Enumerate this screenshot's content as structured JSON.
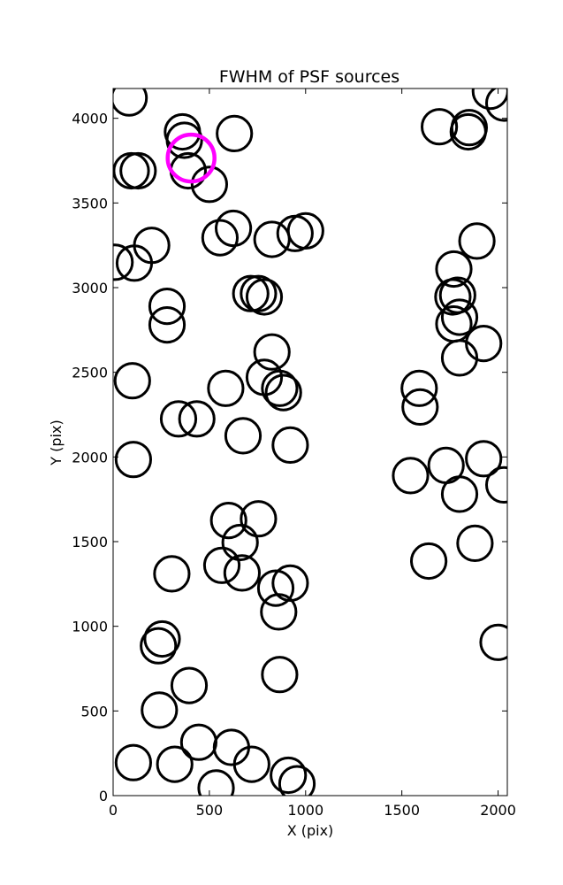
{
  "chart_data": {
    "type": "scatter",
    "title": "FWHM of PSF sources",
    "xlabel": "X (pix)",
    "ylabel": "Y (pix)",
    "xlim": [
      0,
      2048
    ],
    "ylim": [
      0,
      4176
    ],
    "xticks": [
      0,
      500,
      1000,
      1500,
      2000
    ],
    "yticks": [
      0,
      500,
      1000,
      1500,
      2000,
      2500,
      3000,
      3500,
      4000
    ],
    "xtick_labels": [
      "0",
      "500",
      "1000",
      "1500",
      "2000"
    ],
    "ytick_labels": [
      "0",
      "500",
      "1000",
      "1500",
      "2000",
      "2500",
      "3000",
      "3500",
      "4000"
    ],
    "grid": false,
    "marker_radius_pix": 90,
    "colors": {
      "default": "#000000",
      "highlight": "#ff00ff"
    },
    "series": [
      {
        "values": [
          [
            83,
            4120
          ],
          [
            94,
            3690
          ],
          [
            130,
            3690
          ],
          [
            360,
            3920
          ],
          [
            370,
            3870
          ],
          [
            390,
            3690
          ],
          [
            500,
            3610
          ],
          [
            630,
            3910
          ],
          [
            555,
            3295
          ],
          [
            625,
            3350
          ],
          [
            825,
            3285
          ],
          [
            945,
            3320
          ],
          [
            1000,
            3335
          ],
          [
            200,
            3250
          ],
          [
            10,
            3150
          ],
          [
            110,
            3145
          ],
          [
            715,
            2965
          ],
          [
            755,
            2965
          ],
          [
            785,
            2945
          ],
          [
            280,
            2890
          ],
          [
            280,
            2780
          ],
          [
            825,
            2620
          ],
          [
            785,
            2470
          ],
          [
            865,
            2405
          ],
          [
            885,
            2380
          ],
          [
            585,
            2405
          ],
          [
            100,
            2450
          ],
          [
            340,
            2225
          ],
          [
            435,
            2225
          ],
          [
            675,
            2125
          ],
          [
            920,
            2070
          ],
          [
            105,
            1985
          ],
          [
            600,
            1625
          ],
          [
            755,
            1635
          ],
          [
            660,
            1495
          ],
          [
            565,
            1360
          ],
          [
            670,
            1315
          ],
          [
            845,
            1225
          ],
          [
            920,
            1255
          ],
          [
            860,
            1085
          ],
          [
            305,
            1310
          ],
          [
            255,
            925
          ],
          [
            235,
            885
          ],
          [
            395,
            650
          ],
          [
            240,
            505
          ],
          [
            865,
            715
          ],
          [
            445,
            315
          ],
          [
            615,
            285
          ],
          [
            720,
            185
          ],
          [
            320,
            185
          ],
          [
            105,
            195
          ],
          [
            535,
            45
          ],
          [
            910,
            120
          ],
          [
            955,
            70
          ],
          [
            1590,
            2405
          ],
          [
            1595,
            2295
          ],
          [
            1545,
            1890
          ],
          [
            1730,
            1950
          ],
          [
            1800,
            1780
          ],
          [
            1640,
            1385
          ],
          [
            1880,
            1490
          ],
          [
            1925,
            1990
          ],
          [
            2030,
            1835
          ],
          [
            2000,
            905
          ],
          [
            1695,
            3950
          ],
          [
            1845,
            3920
          ],
          [
            1850,
            3945
          ],
          [
            1890,
            3275
          ],
          [
            1770,
            3110
          ],
          [
            1765,
            2945
          ],
          [
            1790,
            2955
          ],
          [
            1770,
            2785
          ],
          [
            1800,
            2825
          ],
          [
            1800,
            2585
          ],
          [
            1925,
            2670
          ],
          [
            1960,
            4160
          ],
          [
            2030,
            4090
          ]
        ],
        "color": "#000000"
      },
      {
        "values": [
          [
            405,
            3765
          ]
        ],
        "color": "#ff00ff",
        "radius_scale": 1.35
      }
    ]
  }
}
